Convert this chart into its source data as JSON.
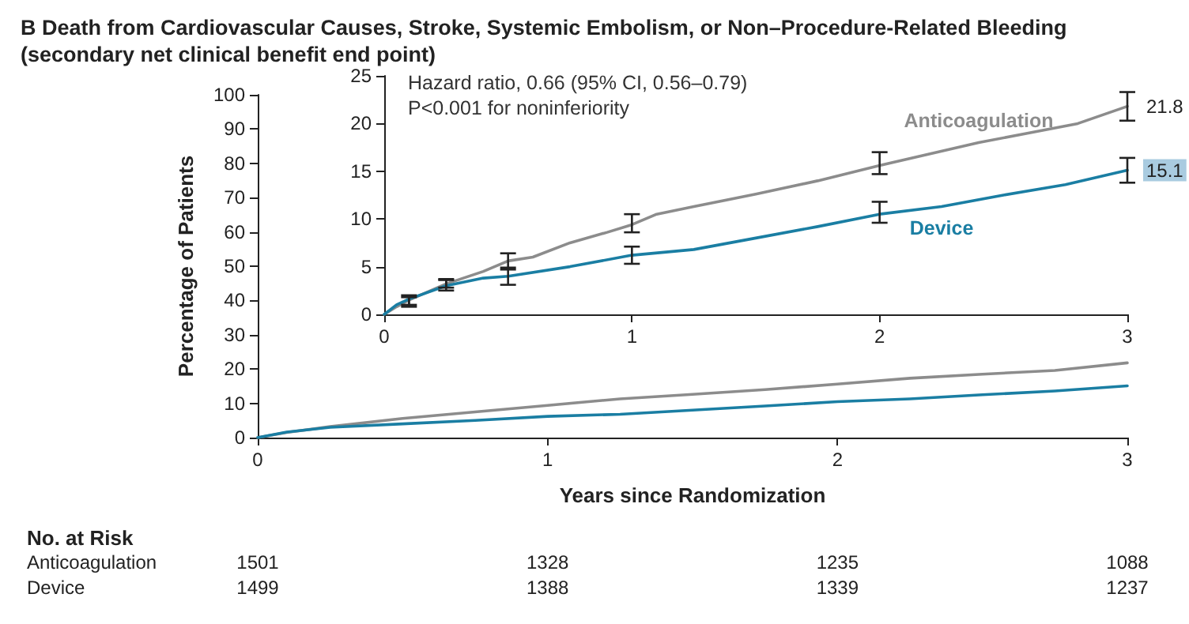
{
  "chart_data": [
    {
      "type": "line",
      "title": "B Death from Cardiovascular Causes, Stroke, Systemic Embolism, or Non–Procedure-Related Bleeding (secondary net clinical benefit end point)",
      "xlabel": "Years since Randomization",
      "ylabel": "Percentage of Patients",
      "xlim": [
        0,
        3
      ],
      "xticks": [
        0,
        1,
        2,
        3
      ],
      "ylim": [
        0,
        100
      ],
      "yticks": [
        0,
        10,
        20,
        30,
        40,
        50,
        60,
        70,
        80,
        90,
        100
      ],
      "grid": false,
      "legend": false,
      "marker": "none",
      "line_style": "solid",
      "annotations": [
        "No. at Risk",
        "Anticoagulation",
        "1501",
        "1328",
        "1235",
        "1088",
        "Device",
        "1499",
        "1388",
        "1339",
        "1237"
      ],
      "series": [
        {
          "color": "#8c8c8c",
          "x": [
            0,
            0.1,
            0.25,
            0.5,
            0.75,
            1,
            1.25,
            1.5,
            1.75,
            2,
            2.25,
            2.5,
            2.75,
            3
          ],
          "values": [
            0,
            1.5,
            3.2,
            5.6,
            7.5,
            9.4,
            11.3,
            12.6,
            14,
            15.6,
            17.3,
            18.5,
            19.6,
            21.8
          ]
        },
        {
          "color": "#1a7ea3",
          "x": [
            0,
            0.1,
            0.25,
            0.5,
            0.75,
            1,
            1.25,
            1.5,
            1.75,
            2,
            2.25,
            2.5,
            2.75,
            3
          ],
          "values": [
            0,
            1.6,
            3,
            4,
            5,
            6.2,
            6.8,
            8,
            9.2,
            10.5,
            11.3,
            12.5,
            13.6,
            15.1
          ]
        }
      ]
    },
    {
      "type": "line",
      "xlim": [
        0,
        3
      ],
      "xticks": [
        0,
        1,
        2,
        3
      ],
      "ylim": [
        0,
        25
      ],
      "yticks": [
        0,
        5,
        10,
        15,
        20,
        25
      ],
      "grid": false,
      "legend": false,
      "marker": "none",
      "line_style": "solid",
      "annotations": [
        "Hazard ratio, 0.66 (95% CI, 0.56–0.79)",
        "P<0.001 for noninferiority"
      ],
      "series": [
        {
          "name": "Anticoagulation",
          "color": "#8c8c8c",
          "x": [
            0,
            0.05,
            0.1,
            0.25,
            0.4,
            0.5,
            0.6,
            0.75,
            0.9,
            1,
            1.1,
            1.25,
            1.5,
            1.75,
            2,
            2.2,
            2.4,
            2.6,
            2.8,
            3
          ],
          "values": [
            0,
            0.8,
            1.5,
            3.2,
            4.5,
            5.6,
            6,
            7.5,
            8.6,
            9.4,
            10.5,
            11.3,
            12.6,
            14,
            15.6,
            16.8,
            18,
            19,
            20,
            21.8
          ],
          "errors": [
            null,
            null,
            [
              1,
              2
            ],
            [
              2.8,
              3.7
            ],
            null,
            [
              4.9,
              6.4
            ],
            null,
            null,
            null,
            [
              8.6,
              10.5
            ],
            null,
            null,
            null,
            null,
            [
              14.7,
              17
            ],
            null,
            null,
            null,
            null,
            [
              20.3,
              23.3
            ]
          ],
          "value_labels": [
            null,
            null,
            null,
            null,
            null,
            null,
            null,
            null,
            null,
            null,
            null,
            null,
            null,
            null,
            null,
            null,
            null,
            null,
            null,
            "21.8"
          ]
        },
        {
          "name": "Device",
          "color": "#1a7ea3",
          "x": [
            0,
            0.05,
            0.1,
            0.25,
            0.4,
            0.5,
            0.75,
            1,
            1.25,
            1.5,
            1.75,
            2,
            2.25,
            2.5,
            2.75,
            3
          ],
          "values": [
            0,
            1,
            1.6,
            3,
            3.8,
            4,
            5,
            6.2,
            6.8,
            8,
            9.2,
            10.5,
            11.3,
            12.5,
            13.6,
            15.1
          ],
          "errors": [
            null,
            null,
            [
              0.8,
              1.8
            ],
            [
              2.5,
              3.6
            ],
            null,
            [
              3.1,
              4.7
            ],
            null,
            [
              5.3,
              7.1
            ],
            null,
            null,
            null,
            [
              9.6,
              11.8
            ],
            null,
            null,
            null,
            [
              13.8,
              16.4
            ]
          ],
          "value_labels": [
            null,
            null,
            null,
            null,
            null,
            null,
            null,
            null,
            null,
            null,
            null,
            null,
            null,
            null,
            null,
            "15.1"
          ]
        }
      ]
    }
  ]
}
